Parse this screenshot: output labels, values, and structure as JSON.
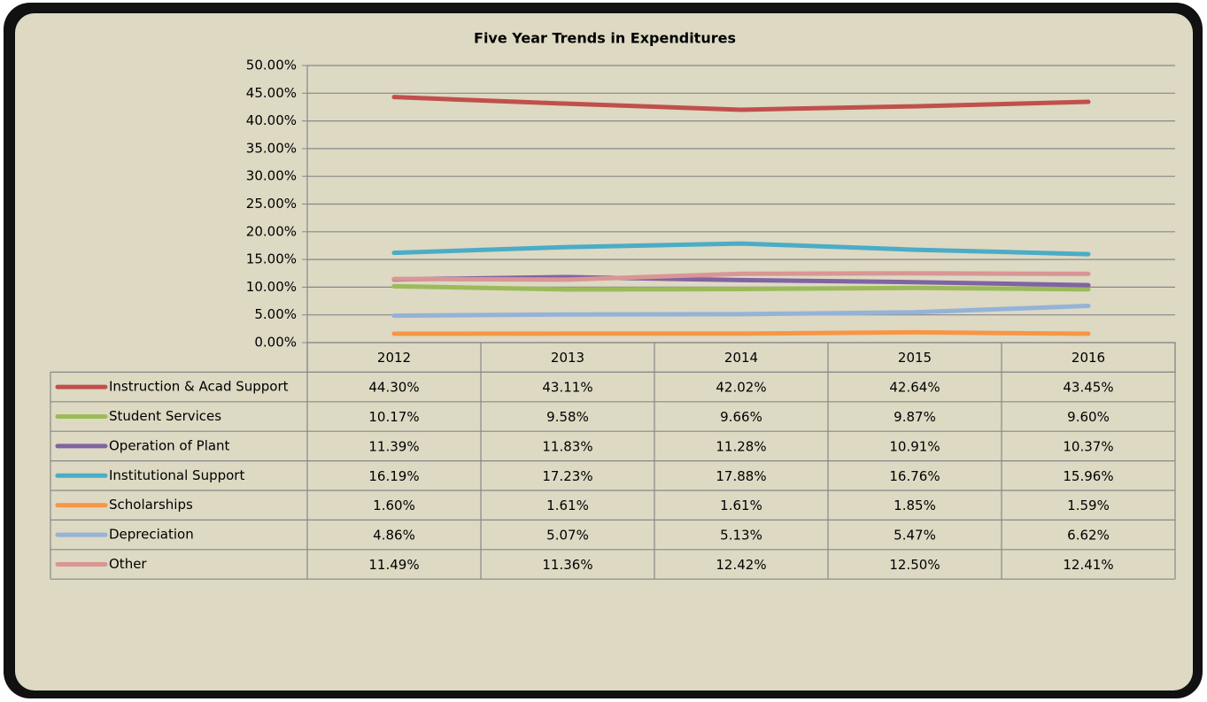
{
  "chart_data": {
    "type": "line",
    "title": "Five Year Trends in Expenditures",
    "categories": [
      "2012",
      "2013",
      "2014",
      "2015",
      "2016"
    ],
    "ylim": [
      0,
      50
    ],
    "yticks": [
      {
        "value": 0,
        "label": "0.00%"
      },
      {
        "value": 5,
        "label": "5.00%"
      },
      {
        "value": 10,
        "label": "10.00%"
      },
      {
        "value": 15,
        "label": "15.00%"
      },
      {
        "value": 20,
        "label": "20.00%"
      },
      {
        "value": 25,
        "label": "25.00%"
      },
      {
        "value": 30,
        "label": "30.00%"
      },
      {
        "value": 35,
        "label": "35.00%"
      },
      {
        "value": 40,
        "label": "40.00%"
      },
      {
        "value": 45,
        "label": "45.00%"
      },
      {
        "value": 50,
        "label": "50.00%"
      }
    ],
    "grid": true,
    "series": [
      {
        "name": "Instruction & Acad Support",
        "color": "#c0504d",
        "values": [
          44.3,
          43.11,
          42.02,
          42.64,
          43.45
        ],
        "value_labels": [
          "44.30%",
          "43.11%",
          "42.02%",
          "42.64%",
          "43.45%"
        ]
      },
      {
        "name": "Student Services",
        "color": "#9bbb59",
        "values": [
          10.17,
          9.58,
          9.66,
          9.87,
          9.6
        ],
        "value_labels": [
          "10.17%",
          "9.58%",
          "9.66%",
          "9.87%",
          "9.60%"
        ]
      },
      {
        "name": "Operation of Plant",
        "color": "#8064a2",
        "values": [
          11.39,
          11.83,
          11.28,
          10.91,
          10.37
        ],
        "value_labels": [
          "11.39%",
          "11.83%",
          "11.28%",
          "10.91%",
          "10.37%"
        ]
      },
      {
        "name": "Institutional Support",
        "color": "#4bacc6",
        "values": [
          16.19,
          17.23,
          17.88,
          16.76,
          15.96
        ],
        "value_labels": [
          "16.19%",
          "17.23%",
          "17.88%",
          "16.76%",
          "15.96%"
        ]
      },
      {
        "name": "Scholarships",
        "color": "#f79646",
        "values": [
          1.6,
          1.61,
          1.61,
          1.85,
          1.59
        ],
        "value_labels": [
          "1.60%",
          "1.61%",
          "1.61%",
          "1.85%",
          "1.59%"
        ]
      },
      {
        "name": "Depreciation",
        "color": "#95b3d7",
        "values": [
          4.86,
          5.07,
          5.13,
          5.47,
          6.62
        ],
        "value_labels": [
          "4.86%",
          "5.07%",
          "5.13%",
          "5.47%",
          "6.62%"
        ]
      },
      {
        "name": "Other",
        "color": "#d99694",
        "values": [
          11.49,
          11.36,
          12.42,
          12.5,
          12.41
        ],
        "value_labels": [
          "11.49%",
          "11.36%",
          "12.42%",
          "12.50%",
          "12.41%"
        ]
      }
    ]
  }
}
